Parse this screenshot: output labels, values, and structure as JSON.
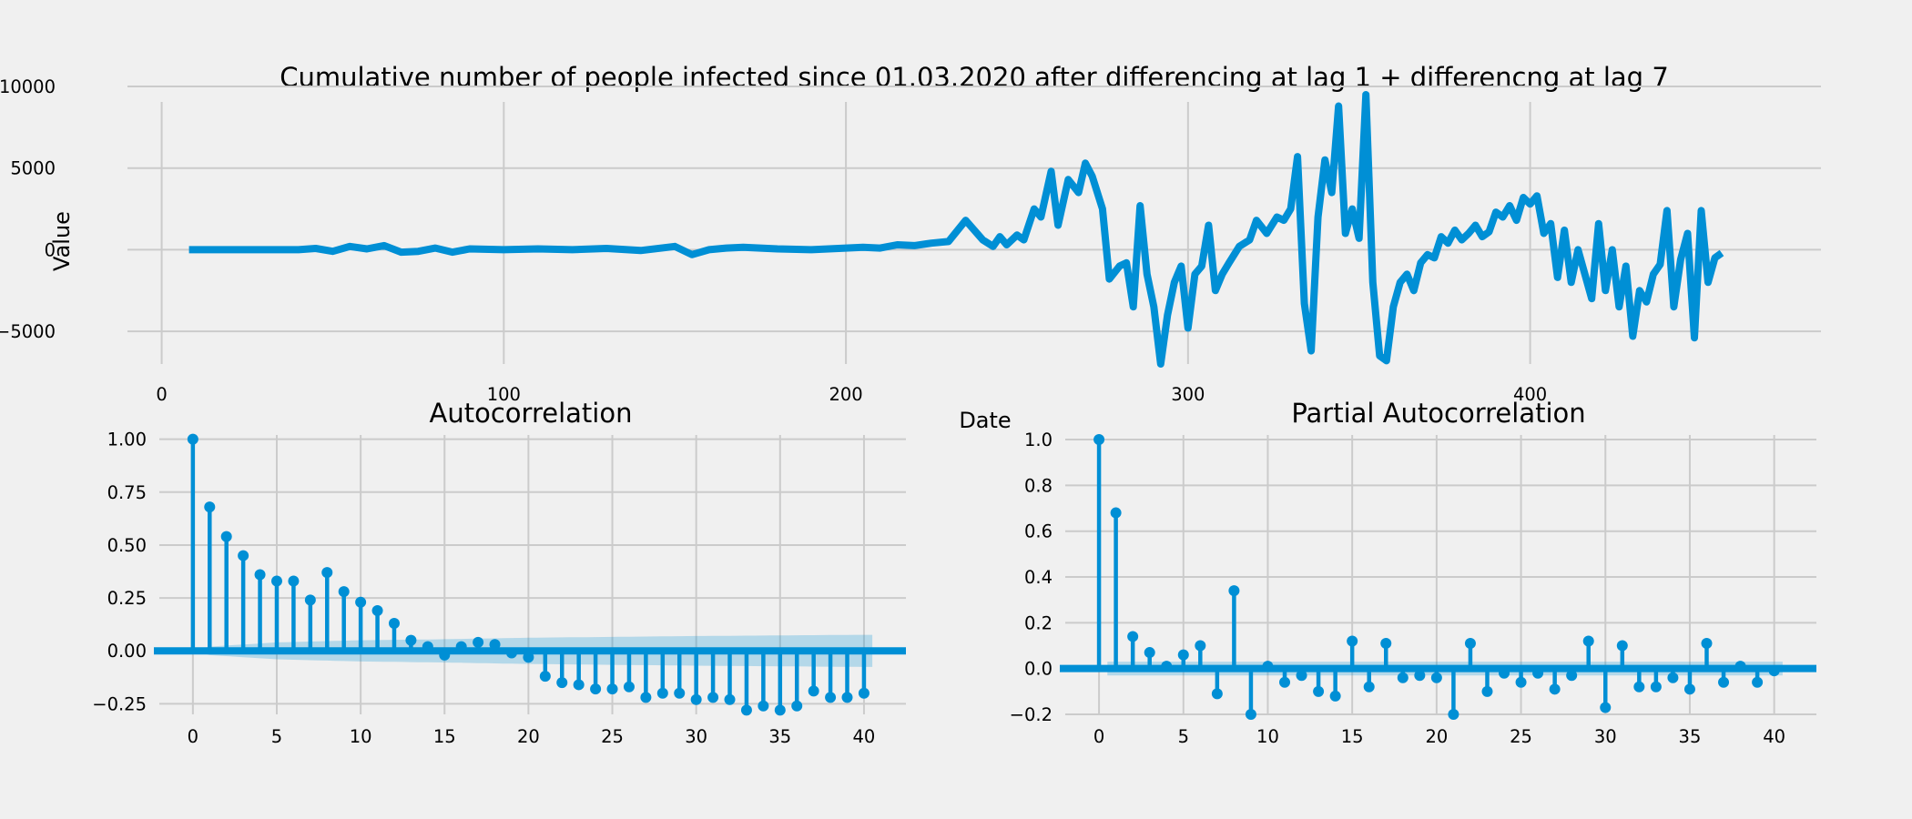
{
  "chart_data": [
    {
      "type": "line",
      "title": "Cumulative number of people infected since 01.03.2020 after differencing at lag 1 + differencng at lag 7",
      "xlabel": "Date",
      "ylabel": "Value",
      "xlim": [
        -10,
        485
      ],
      "ylim": [
        -7000,
        10000
      ],
      "xticks": [
        0,
        100,
        200,
        300,
        400
      ],
      "yticks": [
        -5000,
        0,
        5000,
        10000
      ],
      "grid": true,
      "color": "#008fd5",
      "series": [
        {
          "x": [
            8,
            40,
            45,
            50,
            55,
            60,
            65,
            70,
            75,
            80,
            85,
            90,
            100,
            110,
            120,
            130,
            140,
            150,
            155,
            160,
            165,
            170,
            180,
            190,
            200,
            205,
            210,
            215,
            220,
            225,
            230,
            235,
            240,
            243,
            245,
            247,
            250,
            252,
            255,
            257,
            260,
            262,
            265,
            268,
            270,
            272,
            275,
            277,
            280,
            282,
            284,
            286,
            288,
            290,
            292,
            294,
            296,
            298,
            300,
            302,
            304,
            306,
            308,
            310,
            312,
            315,
            318,
            320,
            323,
            326,
            328,
            330,
            332,
            334,
            336,
            338,
            340,
            342,
            344,
            346,
            348,
            350,
            352,
            354,
            356,
            358,
            360,
            362,
            364,
            366,
            368,
            370,
            372,
            374,
            376,
            378,
            380,
            382,
            384,
            386,
            388,
            390,
            392,
            394,
            396,
            398,
            400,
            402,
            404,
            406,
            408,
            410,
            412,
            414,
            416,
            418,
            420,
            422,
            424,
            426,
            428,
            430,
            432,
            434,
            436,
            438,
            440,
            442,
            444,
            446,
            448,
            450,
            452,
            454,
            456
          ],
          "y": [
            0,
            0,
            80,
            -100,
            200,
            50,
            250,
            -150,
            -100,
            100,
            -150,
            50,
            0,
            50,
            0,
            80,
            -50,
            200,
            -300,
            0,
            100,
            150,
            50,
            0,
            100,
            150,
            100,
            300,
            250,
            400,
            500,
            1800,
            600,
            200,
            800,
            300,
            900,
            600,
            2500,
            2000,
            4800,
            1500,
            4300,
            3500,
            5300,
            4500,
            2500,
            -1800,
            -1000,
            -800,
            -3500,
            2700,
            -1500,
            -3500,
            -7000,
            -4000,
            -2000,
            -1000,
            -4800,
            -1500,
            -1000,
            1500,
            -2500,
            -1500,
            -800,
            200,
            600,
            1800,
            1000,
            2000,
            1800,
            2500,
            5700,
            -3300,
            -6200,
            2000,
            5500,
            3500,
            8800,
            1000,
            2500,
            700,
            9500,
            -2000,
            -6500,
            -6800,
            -3500,
            -2000,
            -1500,
            -2500,
            -800,
            -300,
            -500,
            800,
            400,
            1200,
            600,
            1000,
            1500,
            800,
            1100,
            2300,
            2000,
            2700,
            1800,
            3200,
            2800,
            3300,
            1000,
            1600,
            -1700,
            1200,
            -2000,
            0,
            -1500,
            -3000,
            1600,
            -2500,
            0,
            -3500,
            -1000,
            -5300,
            -2500,
            -3200,
            -1500,
            -900,
            2400,
            -3500,
            -600,
            1000,
            -5400,
            2400,
            -2000,
            -500,
            -200
          ],
          "note": "approximate trace; early portion near 0"
        }
      ]
    },
    {
      "type": "bar",
      "subtype": "stem",
      "title": "Autocorrelation",
      "xlim": [
        -2,
        42.5
      ],
      "ylim": [
        -0.3,
        1.02
      ],
      "xticks": [
        0,
        5,
        10,
        15,
        20,
        25,
        30,
        35,
        40
      ],
      "yticks": [
        -0.25,
        0.0,
        0.25,
        0.5,
        0.75,
        1.0
      ],
      "ytick_labels": [
        "−0.25",
        "0.00",
        "0.25",
        "0.50",
        "0.75",
        "1.00"
      ],
      "grid": true,
      "lags": [
        0,
        1,
        2,
        3,
        4,
        5,
        6,
        7,
        8,
        9,
        10,
        11,
        12,
        13,
        14,
        15,
        16,
        17,
        18,
        19,
        20,
        21,
        22,
        23,
        24,
        25,
        26,
        27,
        28,
        29,
        30,
        31,
        32,
        33,
        34,
        35,
        36,
        37,
        38,
        39,
        40
      ],
      "values": [
        1.0,
        0.68,
        0.54,
        0.45,
        0.36,
        0.33,
        0.33,
        0.24,
        0.37,
        0.28,
        0.23,
        0.19,
        0.13,
        0.05,
        0.02,
        -0.02,
        0.02,
        0.04,
        0.03,
        -0.01,
        -0.03,
        -0.12,
        -0.15,
        -0.16,
        -0.18,
        -0.18,
        -0.17,
        -0.22,
        -0.2,
        -0.2,
        -0.23,
        -0.22,
        -0.23,
        -0.28,
        -0.26,
        -0.28,
        -0.26,
        -0.19,
        -0.22,
        -0.22,
        -0.2
      ],
      "confidence_band": {
        "lags": [
          0,
          1,
          5,
          10,
          15,
          20,
          25,
          30,
          35,
          40
        ],
        "upper": [
          0.0,
          0.02,
          0.04,
          0.05,
          0.055,
          0.062,
          0.066,
          0.07,
          0.073,
          0.076
        ]
      }
    },
    {
      "type": "bar",
      "subtype": "stem",
      "title": "Partial Autocorrelation",
      "xlim": [
        -2,
        42.5
      ],
      "ylim": [
        -0.2,
        1.02
      ],
      "xticks": [
        0,
        5,
        10,
        15,
        20,
        25,
        30,
        35,
        40
      ],
      "yticks": [
        -0.2,
        0.0,
        0.2,
        0.4,
        0.6,
        0.8,
        1.0
      ],
      "ytick_labels": [
        "−0.2",
        "0.0",
        "0.2",
        "0.4",
        "0.6",
        "0.8",
        "1.0"
      ],
      "grid": true,
      "lags": [
        0,
        1,
        2,
        3,
        4,
        5,
        6,
        7,
        8,
        9,
        10,
        11,
        12,
        13,
        14,
        15,
        16,
        17,
        18,
        19,
        20,
        21,
        22,
        23,
        24,
        25,
        26,
        27,
        28,
        29,
        30,
        31,
        32,
        33,
        34,
        35,
        36,
        37,
        38,
        39,
        40
      ],
      "values": [
        1.0,
        0.68,
        0.14,
        0.07,
        0.01,
        0.06,
        0.1,
        -0.11,
        0.34,
        -0.2,
        0.01,
        -0.06,
        -0.03,
        -0.1,
        -0.12,
        0.12,
        -0.08,
        0.11,
        -0.04,
        -0.03,
        -0.04,
        -0.2,
        0.11,
        -0.1,
        -0.02,
        -0.06,
        -0.02,
        -0.09,
        -0.03,
        0.12,
        -0.17,
        0.1,
        -0.08,
        -0.08,
        -0.04,
        -0.09,
        0.11,
        -0.06,
        0.01,
        -0.06,
        -0.01
      ],
      "confidence_band": {
        "upper": 0.03
      }
    }
  ]
}
